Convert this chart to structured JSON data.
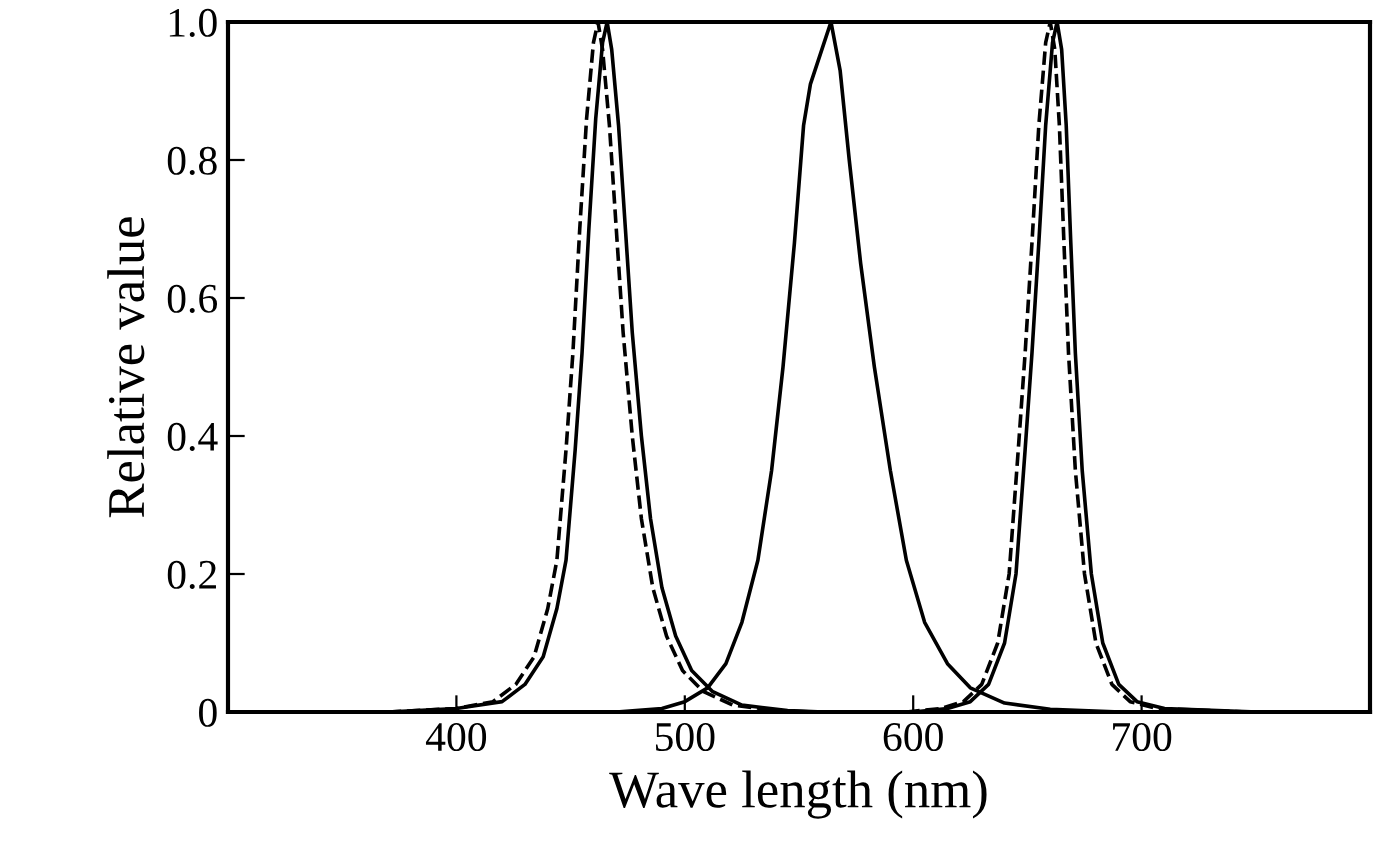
{
  "chart_data": {
    "type": "line",
    "xlabel": "Wave length (nm)",
    "ylabel": "Relative value",
    "xlim": [
      300,
      800
    ],
    "xticks": [
      400,
      500,
      600,
      700
    ],
    "ylim": [
      0,
      1.0
    ],
    "yticks": [
      0,
      0.2,
      0.4,
      0.6,
      0.8,
      {
        "value": 1.0,
        "label": "1.0"
      }
    ],
    "grid": false,
    "marker": "none",
    "series": [
      {
        "color": "#000000",
        "line_style": "solid",
        "x": [
          370,
          400,
          420,
          430,
          438,
          444,
          448,
          452,
          455,
          458,
          461,
          464,
          466,
          468,
          471,
          474,
          477,
          481,
          485,
          490,
          496,
          503,
          512,
          525,
          545,
          560
        ],
        "values": [
          0,
          0.005,
          0.015,
          0.04,
          0.08,
          0.15,
          0.22,
          0.38,
          0.52,
          0.7,
          0.86,
          0.97,
          1.0,
          0.96,
          0.85,
          0.7,
          0.55,
          0.4,
          0.28,
          0.18,
          0.11,
          0.06,
          0.03,
          0.01,
          0.002,
          0
        ]
      },
      {
        "color": "#000000",
        "line_style": "dashed",
        "x": [
          370,
          400,
          416,
          426,
          434,
          440,
          444,
          448,
          451,
          454,
          457,
          460,
          462,
          464,
          467,
          470,
          473,
          477,
          481,
          486,
          492,
          499,
          508,
          521,
          541,
          556
        ],
        "values": [
          0,
          0.005,
          0.015,
          0.04,
          0.08,
          0.15,
          0.22,
          0.38,
          0.52,
          0.7,
          0.86,
          0.97,
          1.0,
          0.96,
          0.85,
          0.7,
          0.55,
          0.4,
          0.28,
          0.18,
          0.11,
          0.06,
          0.03,
          0.01,
          0.002,
          0
        ]
      },
      {
        "color": "#000000",
        "line_style": "solid",
        "x": [
          470,
          490,
          500,
          510,
          518,
          525,
          532,
          538,
          543,
          548,
          552,
          555,
          560,
          564,
          568,
          572,
          577,
          583,
          590,
          597,
          605,
          615,
          625,
          640,
          660,
          690
        ],
        "values": [
          0,
          0.005,
          0.015,
          0.035,
          0.07,
          0.13,
          0.22,
          0.35,
          0.5,
          0.68,
          0.85,
          0.91,
          0.96,
          1.0,
          0.93,
          0.8,
          0.65,
          0.5,
          0.35,
          0.22,
          0.13,
          0.07,
          0.035,
          0.013,
          0.004,
          0
        ]
      },
      {
        "color": "#000000",
        "line_style": "solid",
        "x": [
          600,
          615,
          625,
          633,
          640,
          645,
          649,
          652,
          655,
          658,
          661,
          663,
          665,
          667,
          669,
          671,
          674,
          678,
          683,
          690,
          698,
          710,
          750
        ],
        "values": [
          0,
          0.005,
          0.015,
          0.04,
          0.1,
          0.2,
          0.38,
          0.52,
          0.68,
          0.85,
          0.97,
          1.0,
          0.96,
          0.85,
          0.68,
          0.52,
          0.35,
          0.2,
          0.1,
          0.04,
          0.015,
          0.005,
          0
        ]
      },
      {
        "color": "#000000",
        "line_style": "dashed",
        "x": [
          597,
          612,
          622,
          630,
          637,
          642,
          646,
          649,
          652,
          655,
          658,
          660,
          662,
          664,
          666,
          668,
          671,
          675,
          680,
          687,
          695,
          707,
          747
        ],
        "values": [
          0,
          0.005,
          0.015,
          0.04,
          0.1,
          0.2,
          0.38,
          0.52,
          0.68,
          0.85,
          0.97,
          1.0,
          0.96,
          0.85,
          0.68,
          0.52,
          0.35,
          0.2,
          0.1,
          0.04,
          0.015,
          0.005,
          0
        ]
      }
    ]
  }
}
